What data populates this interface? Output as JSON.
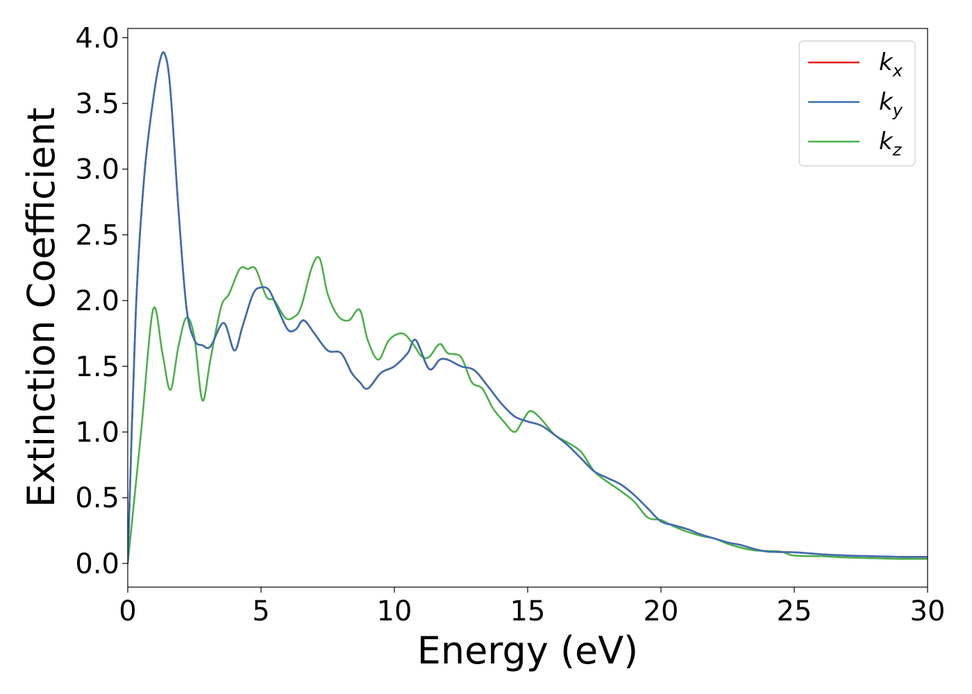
{
  "chart_data": {
    "type": "line",
    "title": "",
    "xlabel": "Energy (eV)",
    "ylabel": "Extinction Coefficient",
    "xlim": [
      0,
      30
    ],
    "ylim": [
      -0.18,
      4.07
    ],
    "xticks": [
      0,
      5,
      10,
      15,
      20,
      25,
      30
    ],
    "xtick_labels": [
      "0",
      "5",
      "10",
      "15",
      "20",
      "25",
      "30"
    ],
    "yticks": [
      0.0,
      0.5,
      1.0,
      1.5,
      2.0,
      2.5,
      3.0,
      3.5,
      4.0
    ],
    "ytick_labels": [
      "0.0",
      "0.5",
      "1.0",
      "1.5",
      "2.0",
      "2.5",
      "3.0",
      "3.5",
      "4.0"
    ],
    "grid": false,
    "legend_position": "top-right",
    "series": [
      {
        "name": "k_x",
        "legend_base": "k",
        "legend_sub": "x",
        "color": "#e41a1c",
        "x": [
          0,
          0.3,
          0.6,
          0.9,
          1.2,
          1.4,
          1.6,
          1.9,
          2.2,
          2.5,
          2.8,
          3.1,
          3.6,
          4.0,
          4.3,
          4.7,
          5.0,
          5.3,
          5.6,
          6.0,
          6.3,
          6.6,
          7.0,
          7.5,
          8.0,
          8.4,
          8.7,
          9.0,
          9.5,
          10.0,
          10.5,
          10.8,
          11.3,
          11.7,
          12.0,
          12.5,
          13.0,
          13.5,
          14.0,
          14.5,
          15.0,
          15.5,
          16.0,
          16.5,
          17.0,
          17.5,
          18.0,
          18.5,
          19.0,
          19.5,
          20.0,
          20.5,
          21.0,
          21.5,
          22.0,
          22.5,
          23.0,
          23.5,
          24.0,
          25.0,
          26.0,
          27.0,
          28.0,
          29.0,
          30.0
        ],
        "y": [
          0.0,
          1.9,
          2.9,
          3.45,
          3.82,
          3.87,
          3.6,
          2.7,
          1.95,
          1.7,
          1.66,
          1.65,
          1.83,
          1.62,
          1.8,
          2.05,
          2.1,
          2.08,
          1.95,
          1.78,
          1.78,
          1.85,
          1.75,
          1.62,
          1.6,
          1.45,
          1.38,
          1.33,
          1.45,
          1.5,
          1.6,
          1.7,
          1.48,
          1.55,
          1.55,
          1.5,
          1.47,
          1.35,
          1.22,
          1.12,
          1.08,
          1.05,
          0.98,
          0.9,
          0.8,
          0.7,
          0.65,
          0.6,
          0.52,
          0.42,
          0.32,
          0.29,
          0.26,
          0.22,
          0.19,
          0.16,
          0.14,
          0.11,
          0.09,
          0.085,
          0.07,
          0.06,
          0.055,
          0.05,
          0.05
        ]
      },
      {
        "name": "k_y",
        "legend_base": "k",
        "legend_sub": "y",
        "color": "#3a6fb0",
        "x": [
          0,
          0.3,
          0.6,
          0.9,
          1.2,
          1.4,
          1.6,
          1.9,
          2.2,
          2.5,
          2.8,
          3.1,
          3.6,
          4.0,
          4.3,
          4.7,
          5.0,
          5.3,
          5.6,
          6.0,
          6.3,
          6.6,
          7.0,
          7.5,
          8.0,
          8.4,
          8.7,
          9.0,
          9.5,
          10.0,
          10.5,
          10.8,
          11.3,
          11.7,
          12.0,
          12.5,
          13.0,
          13.5,
          14.0,
          14.5,
          15.0,
          15.5,
          16.0,
          16.5,
          17.0,
          17.5,
          18.0,
          18.5,
          19.0,
          19.5,
          20.0,
          20.5,
          21.0,
          21.5,
          22.0,
          22.5,
          23.0,
          23.5,
          24.0,
          25.0,
          26.0,
          27.0,
          28.0,
          29.0,
          30.0
        ],
        "y": [
          0.0,
          1.9,
          2.9,
          3.45,
          3.82,
          3.87,
          3.6,
          2.7,
          1.95,
          1.7,
          1.66,
          1.65,
          1.83,
          1.62,
          1.8,
          2.05,
          2.1,
          2.08,
          1.95,
          1.78,
          1.78,
          1.85,
          1.75,
          1.62,
          1.6,
          1.45,
          1.38,
          1.33,
          1.45,
          1.5,
          1.6,
          1.7,
          1.48,
          1.55,
          1.55,
          1.5,
          1.47,
          1.35,
          1.22,
          1.12,
          1.08,
          1.05,
          0.98,
          0.9,
          0.8,
          0.7,
          0.65,
          0.6,
          0.52,
          0.42,
          0.32,
          0.29,
          0.26,
          0.22,
          0.19,
          0.16,
          0.14,
          0.11,
          0.09,
          0.085,
          0.07,
          0.06,
          0.055,
          0.05,
          0.05
        ]
      },
      {
        "name": "k_z",
        "legend_base": "k",
        "legend_sub": "z",
        "color": "#4daf4a",
        "x": [
          0,
          0.5,
          0.95,
          1.3,
          1.6,
          1.9,
          2.2,
          2.5,
          2.8,
          3.1,
          3.5,
          3.8,
          4.2,
          4.5,
          4.8,
          5.2,
          5.5,
          5.9,
          6.2,
          6.5,
          6.9,
          7.2,
          7.5,
          7.9,
          8.3,
          8.7,
          9.0,
          9.4,
          9.8,
          10.3,
          10.7,
          11.0,
          11.3,
          11.7,
          12.0,
          12.5,
          12.9,
          13.3,
          13.7,
          14.1,
          14.5,
          14.8,
          15.1,
          15.5,
          16.0,
          16.5,
          17.0,
          17.5,
          18.0,
          18.5,
          19.0,
          19.5,
          20.0,
          20.5,
          21.0,
          21.5,
          22.0,
          22.5,
          23.0,
          23.5,
          24.0,
          24.5,
          25.0,
          26.0,
          27.0,
          28.0,
          29.0,
          30.0
        ],
        "y": [
          0.0,
          1.0,
          1.93,
          1.6,
          1.32,
          1.65,
          1.87,
          1.72,
          1.24,
          1.55,
          1.95,
          2.05,
          2.24,
          2.24,
          2.24,
          2.03,
          2.0,
          1.87,
          1.87,
          1.95,
          2.25,
          2.32,
          2.05,
          1.88,
          1.85,
          1.93,
          1.7,
          1.55,
          1.7,
          1.75,
          1.67,
          1.58,
          1.57,
          1.67,
          1.6,
          1.57,
          1.38,
          1.33,
          1.18,
          1.08,
          1.0,
          1.08,
          1.16,
          1.1,
          0.98,
          0.92,
          0.85,
          0.7,
          0.62,
          0.55,
          0.47,
          0.35,
          0.33,
          0.28,
          0.24,
          0.21,
          0.19,
          0.15,
          0.12,
          0.1,
          0.095,
          0.09,
          0.06,
          0.055,
          0.045,
          0.04,
          0.035,
          0.035
        ]
      }
    ]
  }
}
